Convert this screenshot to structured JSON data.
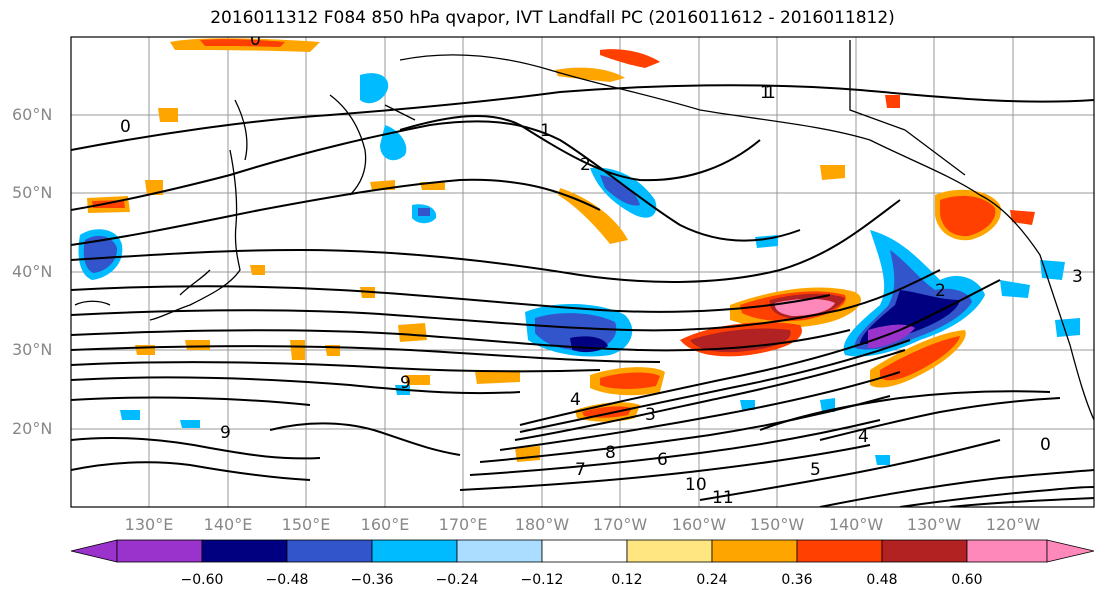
{
  "title": "2016011312 F084 850 hPa qvapor, IVT Landfall PC (2016011612 - 2016011812)",
  "axes": {
    "lat_ticks": [
      "60°N",
      "50°N",
      "40°N",
      "30°N",
      "20°N"
    ],
    "lon_ticks": [
      "130°E",
      "140°E",
      "150°E",
      "160°E",
      "170°E",
      "180°W",
      "170°W",
      "160°W",
      "150°W",
      "140°W",
      "130°W",
      "120°W"
    ]
  },
  "colorbar": {
    "labels": [
      "−0.60",
      "−0.48",
      "−0.36",
      "−0.24",
      "−0.12",
      "0.12",
      "0.24",
      "0.36",
      "0.48",
      "0.60"
    ],
    "colors": [
      "#9933cc",
      "#000080",
      "#3355cc",
      "#00bbff",
      "#aaddff",
      "#ffffff",
      "#ffe680",
      "#ffa500",
      "#ff4000",
      "#b22222",
      "#ff88bb"
    ]
  },
  "contour_labels": [
    "0",
    "0",
    "1",
    "1",
    "2",
    "3",
    "4",
    "5",
    "6",
    "7",
    "8",
    "9",
    "9",
    "10",
    "11",
    "0",
    "1",
    "3",
    "4",
    "2"
  ]
}
